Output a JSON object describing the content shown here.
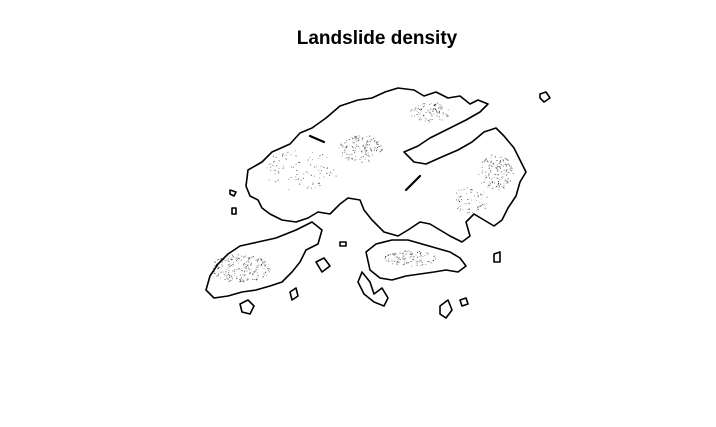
{
  "title": "Landslide density",
  "colors": {
    "background": "#ffffff",
    "outline": "#000000",
    "density_points": "#000000"
  },
  "map": {
    "type": "point-density map",
    "region": "Hong Kong",
    "axes_visible": false,
    "legend_visible": false
  }
}
